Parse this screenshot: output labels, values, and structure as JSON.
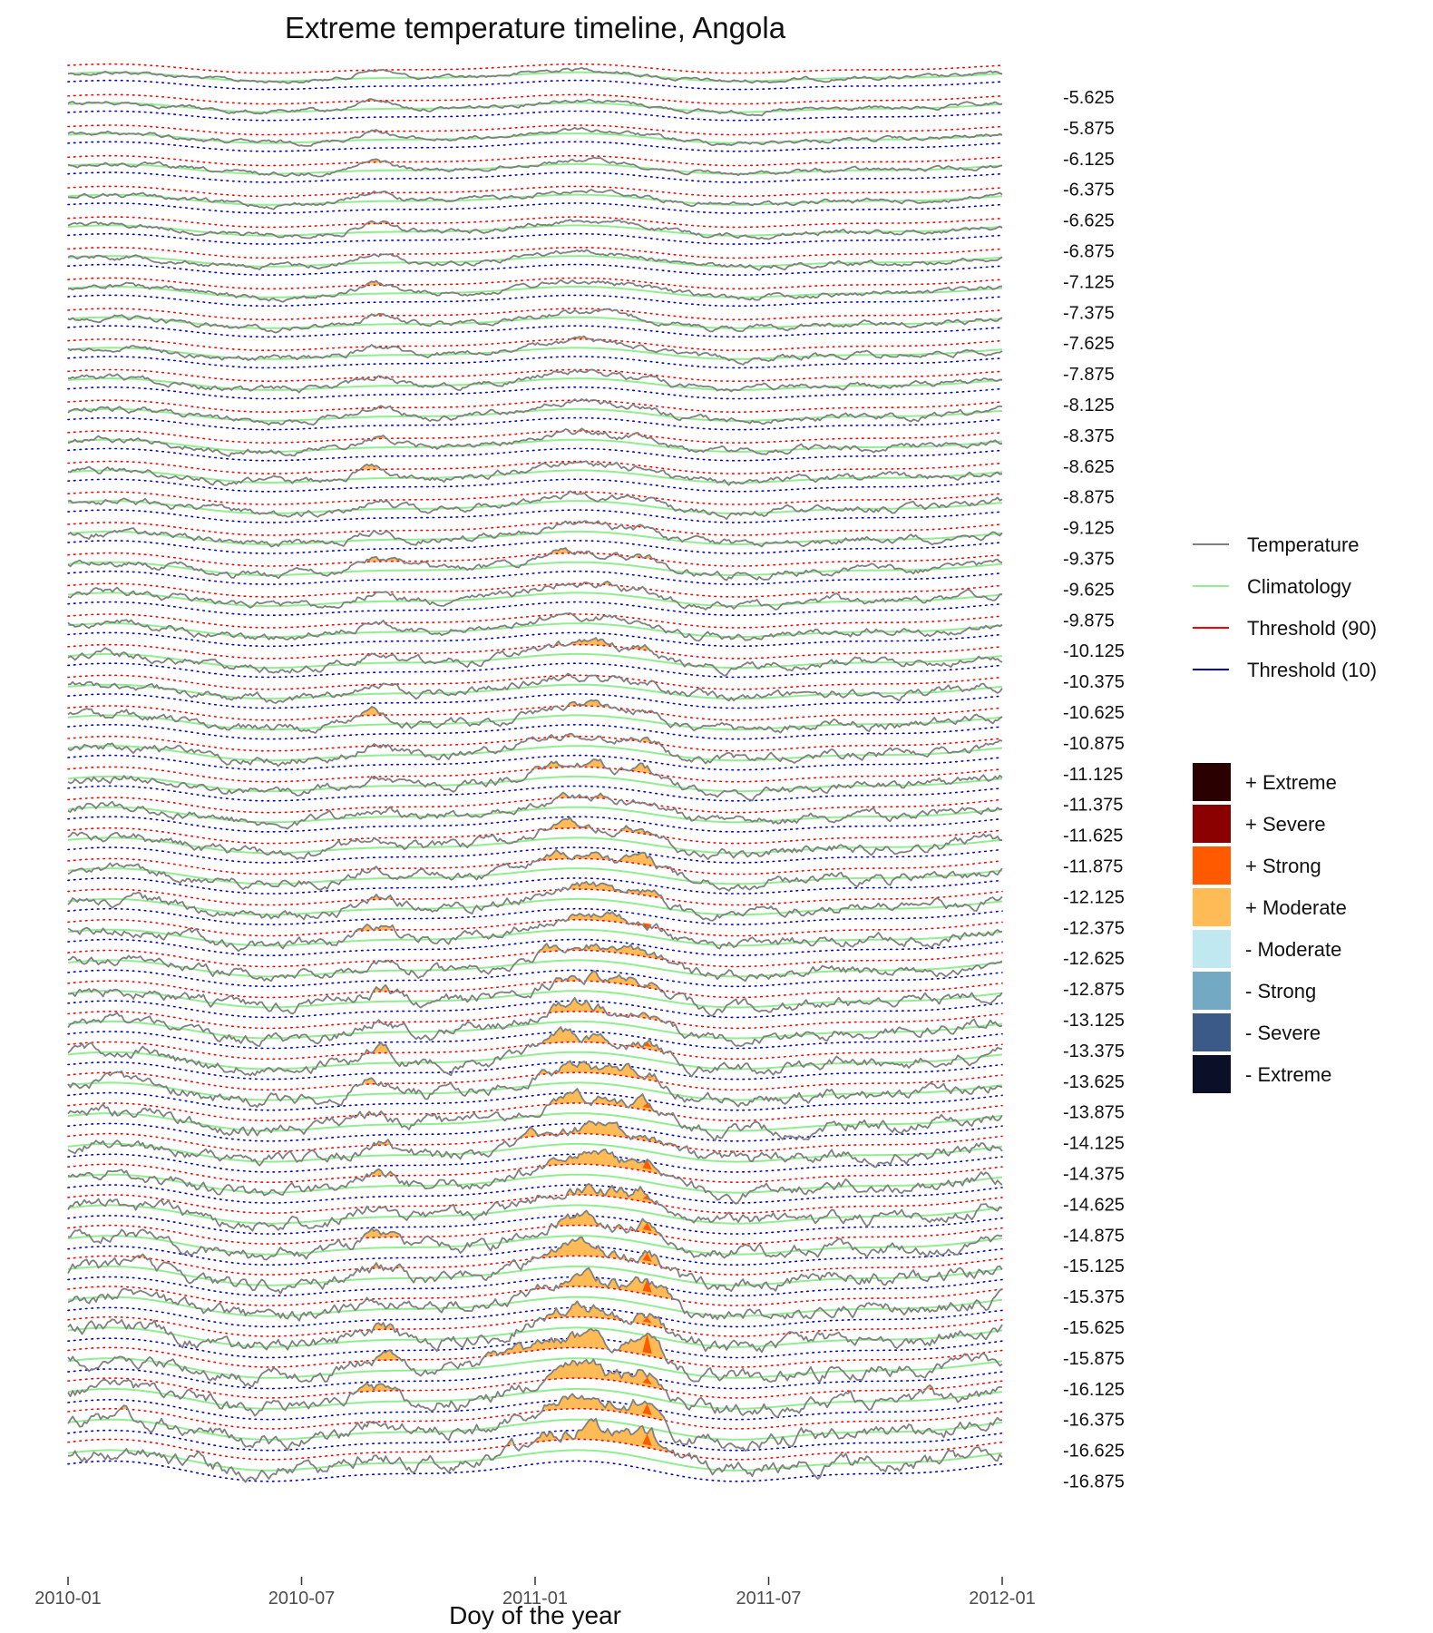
{
  "chart_data": {
    "type": "line",
    "title": "Extreme temperature timeline, Angola",
    "xlabel": "Doy of the year",
    "ylabel": "",
    "x_range": [
      "2010-01",
      "2012-01"
    ],
    "x_ticks": [
      "2010-01",
      "2010-07",
      "2011-01",
      "2011-07",
      "2012-01"
    ],
    "ridge_labels": [
      "-5.625",
      "-5.875",
      "-6.125",
      "-6.375",
      "-6.625",
      "-6.875",
      "-7.125",
      "-7.375",
      "-7.625",
      "-7.875",
      "-8.125",
      "-8.375",
      "-8.625",
      "-8.875",
      "-9.125",
      "-9.375",
      "-9.625",
      "-9.875",
      "-10.125",
      "-10.375",
      "-10.625",
      "-10.875",
      "-11.125",
      "-11.375",
      "-11.625",
      "-11.875",
      "-12.125",
      "-12.375",
      "-12.625",
      "-12.875",
      "-13.125",
      "-13.375",
      "-13.625",
      "-13.875",
      "-14.125",
      "-14.375",
      "-14.625",
      "-14.875",
      "-15.125",
      "-15.375",
      "-15.625",
      "-15.875",
      "-16.125",
      "-16.375",
      "-16.625",
      "-16.875"
    ],
    "grid": false,
    "legend_position": "right",
    "series": [
      {
        "name": "Temperature",
        "color": "#808080",
        "style": "solid"
      },
      {
        "name": "Climatology",
        "color": "#90ee90",
        "style": "solid"
      },
      {
        "name": "Threshold (90)",
        "color": "#ff0000",
        "style": "dotted"
      },
      {
        "name": "Threshold (10)",
        "color": "#0000cd",
        "style": "dotted"
      }
    ],
    "categories_legend": [
      {
        "name": "+ Extreme",
        "color": "#2a0000"
      },
      {
        "name": "+ Severe",
        "color": "#8b0000"
      },
      {
        "name": "+ Strong",
        "color": "#ff5a00"
      },
      {
        "name": "+ Moderate",
        "color": "#ffbb55"
      },
      {
        "name": "- Moderate",
        "color": "#c0e8f0"
      },
      {
        "name": "- Strong",
        "color": "#74a9c4"
      },
      {
        "name": "- Severe",
        "color": "#3b5a88"
      },
      {
        "name": "- Extreme",
        "color": "#0c0f28"
      }
    ]
  }
}
